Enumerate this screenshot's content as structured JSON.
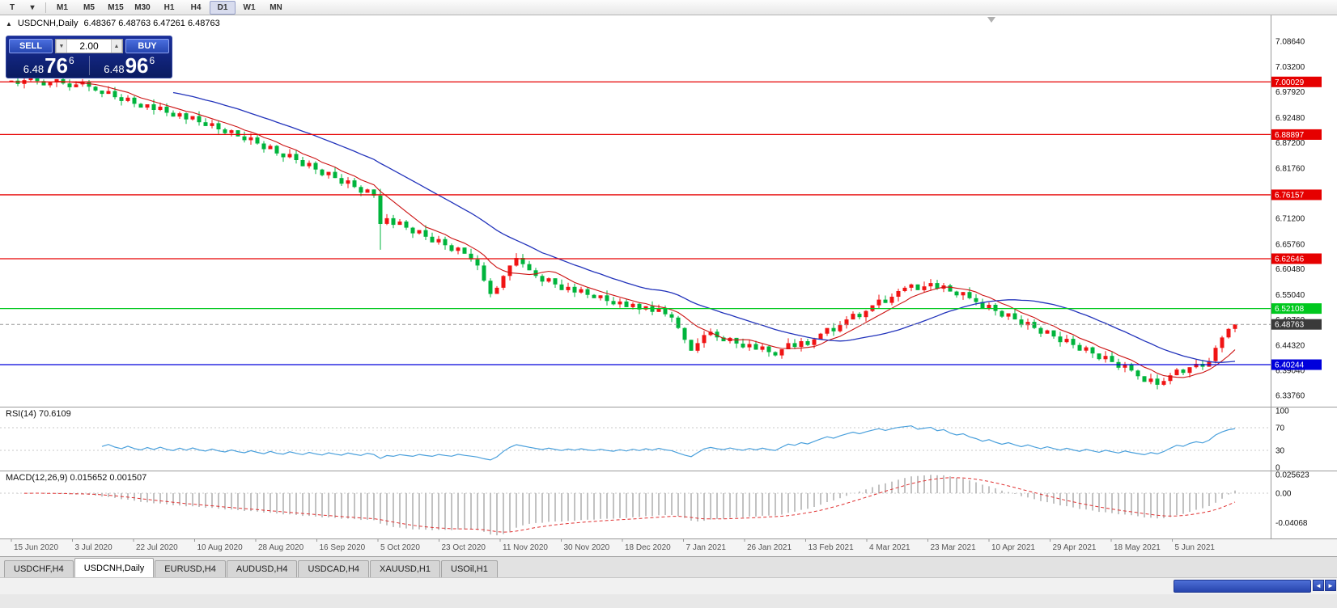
{
  "toolbar": {
    "chart_type_button": "T",
    "dropdown_button": "▾",
    "timeframes": [
      "M1",
      "M5",
      "M15",
      "M30",
      "H1",
      "H4",
      "D1",
      "W1",
      "MN"
    ],
    "active_timeframe": "D1"
  },
  "title": {
    "collapse_arrow": "▲",
    "symbol": "USDCNH,Daily",
    "ohlc": "6.48367 6.48763 6.47261 6.48763"
  },
  "one_click": {
    "sell_label": "SELL",
    "buy_label": "BUY",
    "volume": "2.00",
    "sell_price": {
      "base": "6.48",
      "pips": "76",
      "pipette": "6"
    },
    "buy_price": {
      "base": "6.48",
      "pips": "96",
      "pipette": "6"
    }
  },
  "indicators": {
    "rsi_label": "RSI(14) 70.6109",
    "macd_label": "MACD(12,26,9) 0.015652 0.001507"
  },
  "bottom_tabs": {
    "items": [
      "USDCHF,H4",
      "USDCNH,Daily",
      "EURUSD,H4",
      "AUDUSD,H4",
      "USDCAD,H4",
      "XAUUSD,H1",
      "USOil,H1"
    ],
    "active": "USDCNH,Daily"
  },
  "chart_data": {
    "type": "candlestick",
    "symbol": "USDCNH",
    "timeframe": "Daily",
    "title": "USDCNH,Daily",
    "ohlc_last": {
      "open": 6.48367,
      "high": 6.48763,
      "low": 6.47261,
      "close": 6.48763
    },
    "current_price": 6.48763,
    "price_axis_ticks": [
      "7.08640",
      "7.03200",
      "6.97920",
      "6.92480",
      "6.87200",
      "6.81760",
      "6.76480",
      "6.71200",
      "6.65760",
      "6.60480",
      "6.55040",
      "6.49760",
      "6.44320",
      "6.39040",
      "6.33760"
    ],
    "x_labels": [
      "15 Jun 2020",
      "3 Jul 2020",
      "22 Jul 2020",
      "10 Aug 2020",
      "28 Aug 2020",
      "16 Sep 2020",
      "5 Oct 2020",
      "23 Oct 2020",
      "11 Nov 2020",
      "30 Nov 2020",
      "18 Dec 2020",
      "7 Jan 2021",
      "26 Jan 2021",
      "13 Feb 2021",
      "4 Mar 2021",
      "23 Mar 2021",
      "10 Apr 2021",
      "29 Apr 2021",
      "18 May 2021",
      "5 Jun 2021"
    ],
    "horizontal_lines": [
      {
        "price": 7.00029,
        "color": "#e60000",
        "role": "resistance"
      },
      {
        "price": 6.88897,
        "color": "#e60000",
        "role": "resistance"
      },
      {
        "price": 6.76157,
        "color": "#e60000",
        "role": "resistance"
      },
      {
        "price": 6.62646,
        "color": "#e60000",
        "role": "resistance"
      },
      {
        "price": 6.52108,
        "color": "#00c81e",
        "role": "level"
      },
      {
        "price": 6.40244,
        "color": "#0000dc",
        "role": "support"
      }
    ],
    "up_color": "#f01414",
    "down_color": "#00b43c",
    "ma_fast": {
      "period": 8,
      "color": "#cc1111"
    },
    "ma_slow": {
      "period": 26,
      "color": "#2233bb"
    },
    "first_open": 7.0,
    "closes": [
      7.003,
      6.996,
      7.004,
      7.01,
      7.002,
      6.993,
      6.999,
      7.006,
      6.997,
      6.989,
      6.995,
      7.001,
      6.99,
      6.982,
      6.975,
      6.981,
      6.968,
      6.96,
      6.967,
      6.954,
      6.946,
      6.953,
      6.941,
      6.948,
      6.935,
      6.927,
      6.934,
      6.921,
      6.928,
      6.915,
      6.907,
      6.913,
      6.9,
      6.892,
      6.898,
      6.885,
      6.877,
      6.883,
      6.87,
      6.858,
      6.865,
      6.849,
      6.841,
      6.848,
      6.835,
      6.822,
      6.829,
      6.815,
      6.803,
      6.81,
      6.797,
      6.785,
      6.792,
      6.778,
      6.766,
      6.773,
      6.76,
      6.7,
      6.712,
      6.698,
      6.705,
      6.692,
      6.68,
      6.687,
      6.673,
      6.661,
      6.668,
      6.655,
      6.643,
      6.65,
      6.637,
      6.625,
      6.612,
      6.58,
      6.552,
      6.565,
      6.59,
      6.612,
      6.628,
      6.615,
      6.602,
      6.59,
      6.578,
      6.585,
      6.572,
      6.56,
      6.567,
      6.555,
      6.562,
      6.55,
      6.543,
      6.549,
      6.537,
      6.53,
      6.536,
      6.524,
      6.531,
      6.519,
      6.526,
      6.514,
      6.521,
      6.509,
      6.502,
      6.48,
      6.455,
      6.432,
      6.448,
      6.465,
      6.472,
      6.46,
      6.452,
      6.459,
      6.447,
      6.439,
      6.446,
      6.434,
      6.441,
      6.429,
      6.422,
      6.435,
      6.448,
      6.44,
      6.452,
      6.444,
      6.456,
      6.468,
      6.48,
      6.473,
      6.486,
      6.498,
      6.51,
      6.503,
      6.516,
      6.528,
      6.54,
      6.533,
      6.546,
      6.558,
      6.565,
      6.572,
      6.56,
      6.568,
      6.575,
      6.563,
      6.57,
      6.557,
      6.549,
      6.556,
      6.543,
      6.535,
      6.522,
      6.529,
      6.516,
      6.504,
      6.511,
      6.498,
      6.486,
      6.493,
      6.48,
      6.468,
      6.475,
      6.462,
      6.45,
      6.457,
      6.444,
      6.432,
      6.439,
      6.426,
      6.414,
      6.421,
      6.408,
      6.396,
      6.403,
      6.39,
      6.378,
      6.366,
      6.373,
      6.36,
      6.368,
      6.38,
      6.392,
      6.385,
      6.397,
      6.404,
      6.398,
      6.41,
      6.438,
      6.46,
      6.478,
      6.4876
    ],
    "rsi": {
      "period": 14,
      "value": 70.6109,
      "color": "#4aa0dc",
      "levels": [
        100,
        70,
        30,
        0
      ]
    },
    "macd": {
      "fast": 12,
      "slow": 26,
      "signal": 9,
      "value": 0.015652,
      "signal_value": 0.001507,
      "hist_color": "#b2b2b2",
      "signal_color": "#e03232",
      "axis_ticks": [
        "0.025623",
        "0.00",
        "-0.04068"
      ]
    }
  }
}
